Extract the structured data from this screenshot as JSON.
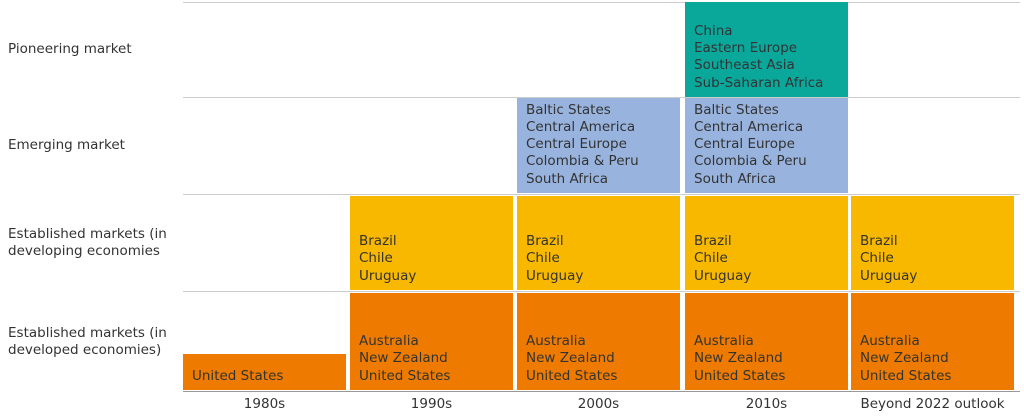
{
  "rows": [
    {
      "label": "Pioneering market",
      "color": "#0aa79b"
    },
    {
      "label": "Emerging market",
      "color": "#98b3de"
    },
    {
      "label": "Established markets (in developing economies",
      "color": "#f8b800"
    },
    {
      "label": "Established markets (in developed economies)",
      "color": "#ee7b00"
    }
  ],
  "columns": [
    "1980s",
    "1990s",
    "2000s",
    "2010s",
    "Beyond 2022 outlook"
  ],
  "cells": [
    {
      "row": 0,
      "column": 3,
      "items": [
        "China",
        "Eastern Europe",
        "Southeast Asia",
        "Sub-Saharan Africa"
      ]
    },
    {
      "row": 1,
      "column": 2,
      "items": [
        "Baltic States",
        "Central America",
        "Central Europe",
        "Colombia & Peru",
        "South Africa"
      ]
    },
    {
      "row": 1,
      "column": 3,
      "items": [
        "Baltic States",
        "Central America",
        "Central Europe",
        "Colombia & Peru",
        "South Africa"
      ]
    },
    {
      "row": 2,
      "column": 1,
      "items": [
        "Brazil",
        "Chile",
        "Uruguay"
      ]
    },
    {
      "row": 2,
      "column": 2,
      "items": [
        "Brazil",
        "Chile",
        "Uruguay"
      ]
    },
    {
      "row": 2,
      "column": 3,
      "items": [
        "Brazil",
        "Chile",
        "Uruguay"
      ]
    },
    {
      "row": 2,
      "column": 4,
      "items": [
        "Brazil",
        "Chile",
        "Uruguay"
      ]
    },
    {
      "row": 3,
      "column": 0,
      "items": [
        "United States"
      ]
    },
    {
      "row": 3,
      "column": 1,
      "items": [
        "Australia",
        "New Zealand",
        "United States"
      ]
    },
    {
      "row": 3,
      "column": 2,
      "items": [
        "Australia",
        "New Zealand",
        "United States"
      ]
    },
    {
      "row": 3,
      "column": 3,
      "items": [
        "Australia",
        "New Zealand",
        "United States"
      ]
    },
    {
      "row": 3,
      "column": 4,
      "items": [
        "Australia",
        "New Zealand",
        "United States"
      ]
    }
  ]
}
